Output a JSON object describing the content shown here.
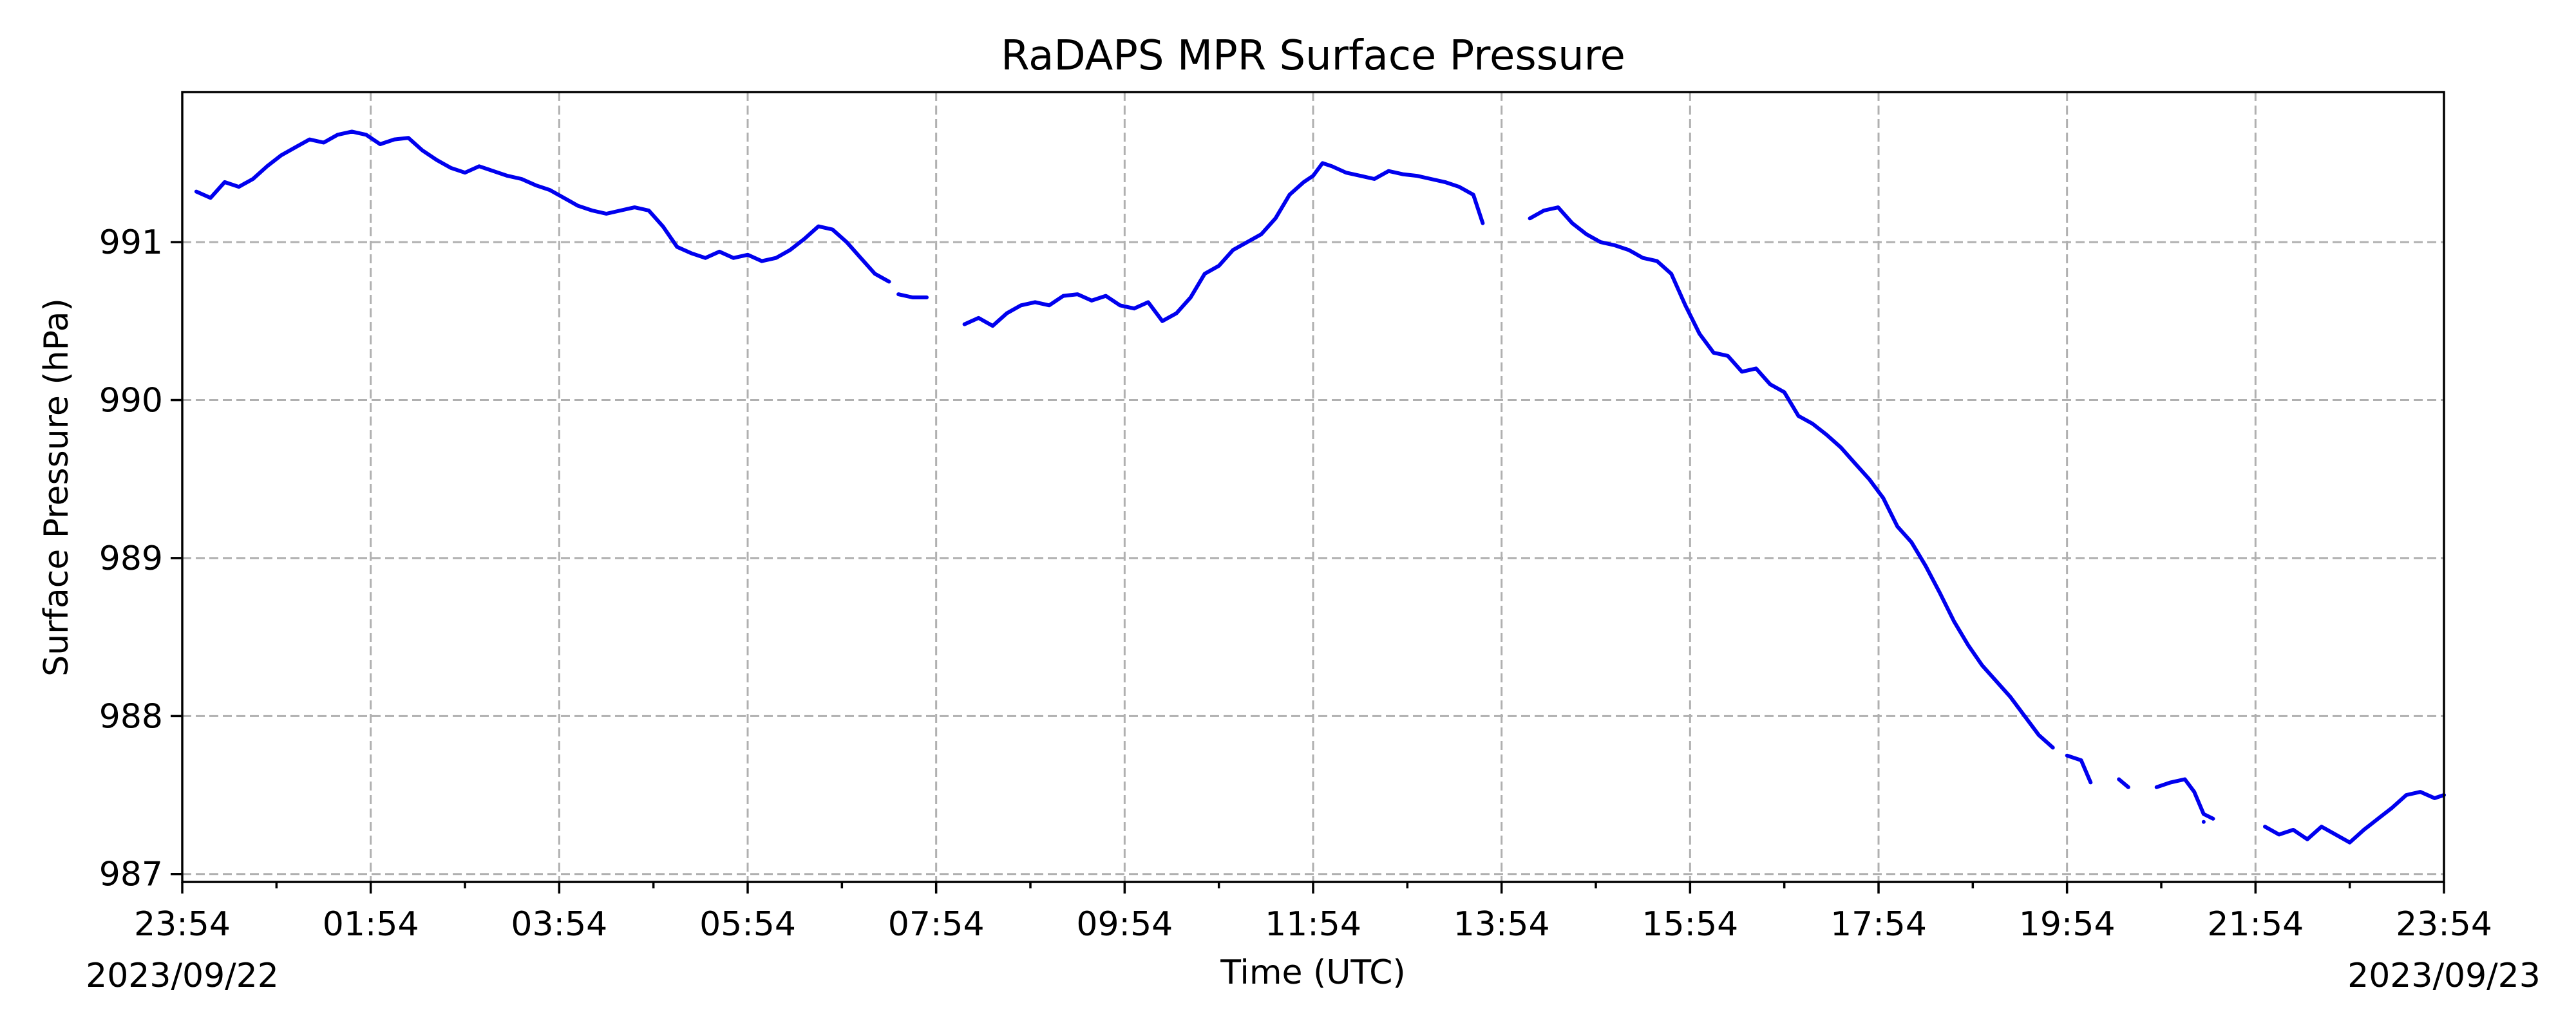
{
  "chart_data": {
    "type": "line",
    "title": "RaDAPS MPR Surface Pressure",
    "xlabel": "Time (UTC)",
    "ylabel": "Surface Pressure (hPa)",
    "x_unit": "hours after 2023/09/22 23:54 UTC",
    "xlim": [
      0,
      24
    ],
    "ylim": [
      986.95,
      991.95
    ],
    "grid": true,
    "colors": {
      "series": "#0000ee"
    },
    "x_ticks": [
      {
        "x": 0,
        "label": "23:54",
        "date": "2023/09/22"
      },
      {
        "x": 2,
        "label": "01:54",
        "date": ""
      },
      {
        "x": 4,
        "label": "03:54",
        "date": ""
      },
      {
        "x": 6,
        "label": "05:54",
        "date": ""
      },
      {
        "x": 8,
        "label": "07:54",
        "date": ""
      },
      {
        "x": 10,
        "label": "09:54",
        "date": ""
      },
      {
        "x": 12,
        "label": "11:54",
        "date": ""
      },
      {
        "x": 14,
        "label": "13:54",
        "date": ""
      },
      {
        "x": 16,
        "label": "15:54",
        "date": ""
      },
      {
        "x": 18,
        "label": "17:54",
        "date": ""
      },
      {
        "x": 20,
        "label": "19:54",
        "date": ""
      },
      {
        "x": 22,
        "label": "21:54",
        "date": ""
      },
      {
        "x": 24,
        "label": "23:54",
        "date": "2023/09/23"
      }
    ],
    "y_ticks": [
      {
        "y": 987,
        "label": "987"
      },
      {
        "y": 988,
        "label": "988"
      },
      {
        "y": 989,
        "label": "989"
      },
      {
        "y": 990,
        "label": "990"
      },
      {
        "y": 991,
        "label": "991"
      }
    ],
    "series": [
      {
        "name": "",
        "segments": [
          [
            [
              0.15,
              991.32
            ],
            [
              0.3,
              991.28
            ],
            [
              0.45,
              991.38
            ],
            [
              0.6,
              991.35
            ],
            [
              0.75,
              991.4
            ],
            [
              0.9,
              991.48
            ],
            [
              1.05,
              991.55
            ],
            [
              1.2,
              991.6
            ],
            [
              1.35,
              991.65
            ],
            [
              1.5,
              991.63
            ],
            [
              1.65,
              991.68
            ],
            [
              1.8,
              991.7
            ],
            [
              1.95,
              991.68
            ],
            [
              2.1,
              991.62
            ],
            [
              2.25,
              991.65
            ],
            [
              2.4,
              991.66
            ],
            [
              2.55,
              991.58
            ],
            [
              2.7,
              991.52
            ],
            [
              2.85,
              991.47
            ],
            [
              3.0,
              991.44
            ],
            [
              3.15,
              991.48
            ],
            [
              3.3,
              991.45
            ],
            [
              3.45,
              991.42
            ],
            [
              3.6,
              991.4
            ],
            [
              3.75,
              991.36
            ],
            [
              3.9,
              991.33
            ],
            [
              4.05,
              991.28
            ],
            [
              4.2,
              991.23
            ],
            [
              4.35,
              991.2
            ],
            [
              4.5,
              991.18
            ],
            [
              4.65,
              991.2
            ],
            [
              4.8,
              991.22
            ],
            [
              4.95,
              991.2
            ],
            [
              5.1,
              991.1
            ],
            [
              5.25,
              990.97
            ],
            [
              5.4,
              990.93
            ],
            [
              5.55,
              990.9
            ],
            [
              5.7,
              990.94
            ],
            [
              5.85,
              990.9
            ],
            [
              6.0,
              990.92
            ],
            [
              6.15,
              990.88
            ],
            [
              6.3,
              990.9
            ],
            [
              6.45,
              990.95
            ],
            [
              6.6,
              991.02
            ],
            [
              6.75,
              991.1
            ],
            [
              6.9,
              991.08
            ],
            [
              7.05,
              991.0
            ],
            [
              7.2,
              990.9
            ],
            [
              7.35,
              990.8
            ],
            [
              7.5,
              990.75
            ]
          ],
          [
            [
              7.6,
              990.67
            ],
            [
              7.75,
              990.65
            ],
            [
              7.9,
              990.65
            ]
          ],
          [
            [
              8.3,
              990.48
            ],
            [
              8.45,
              990.52
            ],
            [
              8.6,
              990.47
            ],
            [
              8.75,
              990.55
            ],
            [
              8.9,
              990.6
            ],
            [
              9.05,
              990.62
            ],
            [
              9.2,
              990.6
            ],
            [
              9.35,
              990.66
            ],
            [
              9.5,
              990.67
            ],
            [
              9.65,
              990.63
            ],
            [
              9.8,
              990.66
            ],
            [
              9.95,
              990.6
            ],
            [
              10.1,
              990.58
            ],
            [
              10.25,
              990.62
            ],
            [
              10.4,
              990.5
            ],
            [
              10.55,
              990.55
            ],
            [
              10.7,
              990.65
            ],
            [
              10.85,
              990.8
            ],
            [
              11.0,
              990.85
            ],
            [
              11.15,
              990.95
            ],
            [
              11.3,
              991.0
            ],
            [
              11.45,
              991.05
            ],
            [
              11.6,
              991.15
            ],
            [
              11.75,
              991.3
            ],
            [
              11.9,
              991.38
            ],
            [
              12.0,
              991.42
            ],
            [
              12.1,
              991.5
            ],
            [
              12.2,
              991.48
            ],
            [
              12.35,
              991.44
            ],
            [
              12.5,
              991.42
            ],
            [
              12.65,
              991.4
            ],
            [
              12.8,
              991.45
            ],
            [
              12.95,
              991.43
            ],
            [
              13.1,
              991.42
            ],
            [
              13.25,
              991.4
            ],
            [
              13.4,
              991.38
            ],
            [
              13.55,
              991.35
            ],
            [
              13.7,
              991.3
            ],
            [
              13.8,
              991.12
            ]
          ],
          [
            [
              14.3,
              991.15
            ],
            [
              14.45,
              991.2
            ],
            [
              14.6,
              991.22
            ],
            [
              14.75,
              991.12
            ],
            [
              14.9,
              991.05
            ],
            [
              15.05,
              991.0
            ],
            [
              15.2,
              990.98
            ],
            [
              15.35,
              990.95
            ],
            [
              15.5,
              990.9
            ],
            [
              15.65,
              990.88
            ],
            [
              15.8,
              990.8
            ],
            [
              15.95,
              990.6
            ],
            [
              16.1,
              990.42
            ],
            [
              16.25,
              990.3
            ],
            [
              16.4,
              990.28
            ],
            [
              16.55,
              990.18
            ],
            [
              16.7,
              990.2
            ],
            [
              16.85,
              990.1
            ],
            [
              17.0,
              990.05
            ],
            [
              17.15,
              989.9
            ],
            [
              17.3,
              989.85
            ],
            [
              17.45,
              989.78
            ],
            [
              17.6,
              989.7
            ],
            [
              17.75,
              989.6
            ],
            [
              17.9,
              989.5
            ],
            [
              18.05,
              989.38
            ],
            [
              18.2,
              989.2
            ],
            [
              18.35,
              989.1
            ],
            [
              18.5,
              988.95
            ],
            [
              18.65,
              988.78
            ],
            [
              18.8,
              988.6
            ],
            [
              18.95,
              988.45
            ],
            [
              19.1,
              988.32
            ],
            [
              19.25,
              988.22
            ],
            [
              19.4,
              988.12
            ],
            [
              19.55,
              988.0
            ],
            [
              19.7,
              987.88
            ],
            [
              19.85,
              987.8
            ]
          ],
          [
            [
              20.0,
              987.75
            ],
            [
              20.15,
              987.72
            ],
            [
              20.25,
              987.58
            ]
          ],
          [
            [
              20.55,
              987.6
            ],
            [
              20.65,
              987.55
            ]
          ],
          [
            [
              20.95,
              987.55
            ],
            [
              21.1,
              987.58
            ],
            [
              21.25,
              987.6
            ],
            [
              21.35,
              987.52
            ],
            [
              21.45,
              987.38
            ],
            [
              21.55,
              987.35
            ]
          ],
          [
            [
              21.45,
              987.33
            ]
          ],
          [
            [
              22.1,
              987.3
            ],
            [
              22.25,
              987.25
            ],
            [
              22.4,
              987.28
            ],
            [
              22.55,
              987.22
            ],
            [
              22.7,
              987.3
            ],
            [
              22.85,
              987.25
            ],
            [
              23.0,
              987.2
            ],
            [
              23.15,
              987.28
            ],
            [
              23.3,
              987.35
            ],
            [
              23.45,
              987.42
            ],
            [
              23.6,
              987.5
            ],
            [
              23.75,
              987.52
            ],
            [
              23.9,
              987.48
            ],
            [
              24.0,
              987.5
            ]
          ]
        ]
      }
    ]
  }
}
